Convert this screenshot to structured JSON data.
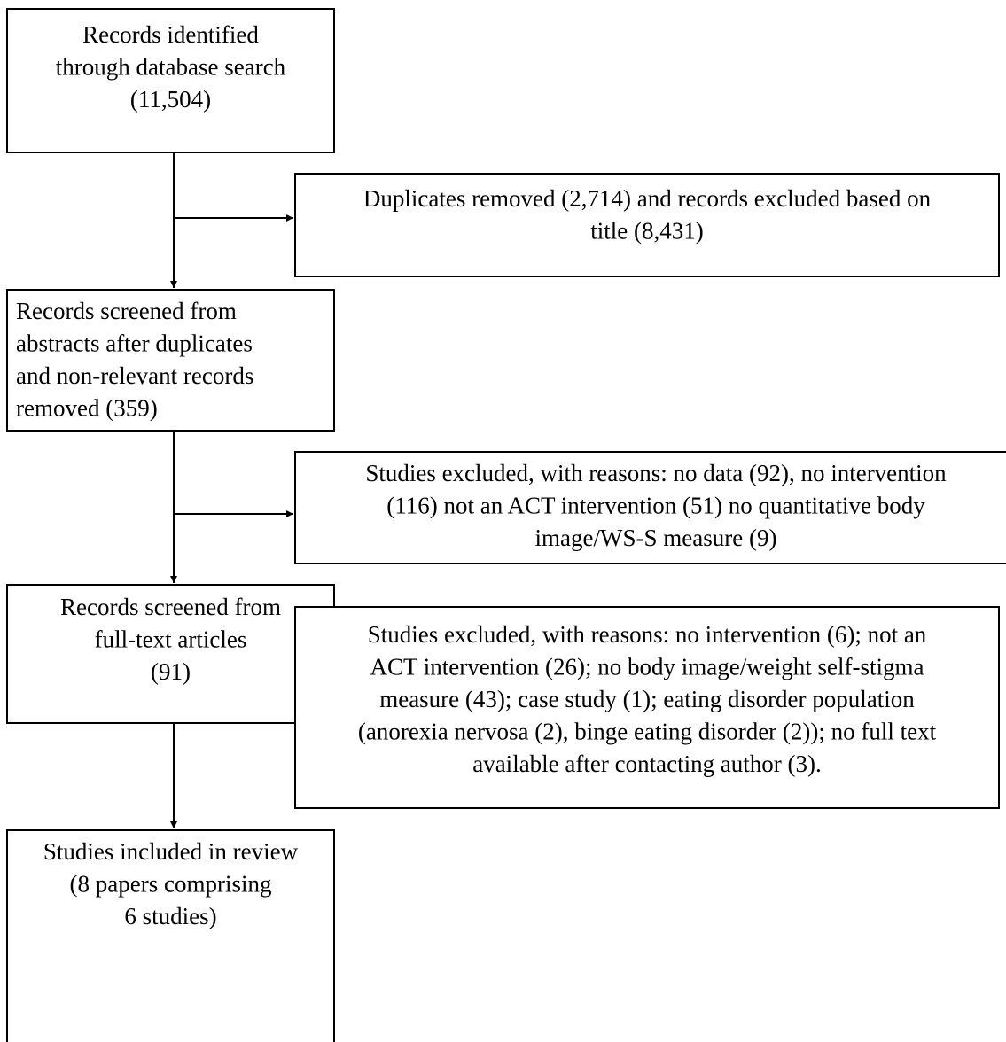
{
  "nodes": [
    {
      "lines": [
        "Records identified",
        "through database search",
        "(11,504)"
      ]
    },
    {
      "lines": [
        "Duplicates removed (2,714) and records excluded based on",
        "title (8,431)"
      ]
    },
    {
      "lines": [
        "Records screened from",
        "abstracts after duplicates",
        "and non-relevant records",
        "removed (359)"
      ]
    },
    {
      "lines": [
        "Studies excluded, with reasons: no data (92), no intervention",
        "(116) not an ACT intervention (51) no quantitative body",
        "image/WS-S measure (9)"
      ]
    },
    {
      "lines": [
        "Records screened from",
        "full-text articles",
        "(91)"
      ]
    },
    {
      "lines": [
        "Studies excluded, with reasons: no intervention (6); not an",
        "ACT intervention (26); no body image/weight self-stigma",
        "measure (43); case study (1); eating disorder population",
        "(anorexia nervosa (2), binge eating disorder (2)); no full text",
        "available after contacting author (3)."
      ]
    },
    {
      "lines": [
        "Studies included in review",
        "(8 papers comprising",
        "6 studies)"
      ]
    }
  ]
}
